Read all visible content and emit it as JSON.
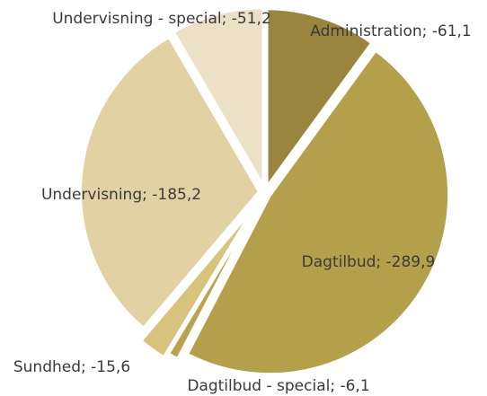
{
  "chart_data": {
    "type": "pie",
    "values": [
      -61.1,
      -289.9,
      -6.1,
      -15.6,
      -185.2,
      -51.2
    ],
    "value_labels": [
      "Administration; -61,1",
      "Dagtilbud; -289,9",
      "Dagtilbud - special; -6,1",
      "Sundhed; -15,6",
      "Undervisning; -185,2",
      "Undervisning - special; -51,2"
    ],
    "colors": [
      "#9a853f",
      "#b4a04b",
      "#b9a34e",
      "#d7c37c",
      "#e1d1a3",
      "#ece1c6"
    ]
  }
}
